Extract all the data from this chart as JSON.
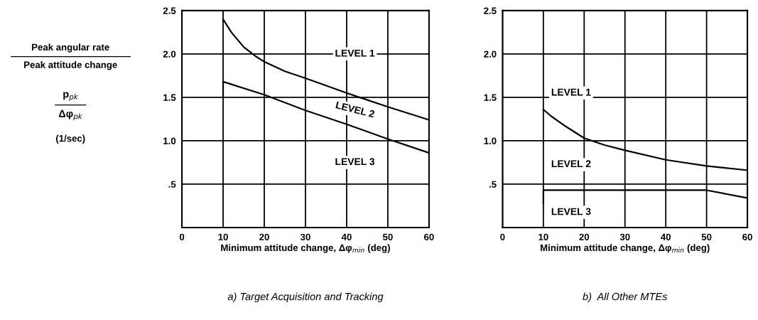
{
  "chart_data": [
    {
      "type": "line",
      "title": "a) Target Acquisition and Tracking",
      "xlabel": "Minimum attitude change, Δφ$_{min}$ (deg)",
      "ylabel": "Peak angular rate\nPeak attitude change\np$_{pk}$\nΔφ$_{pk}$\n(1/sec)",
      "xlim": [
        0,
        60
      ],
      "ylim": [
        0,
        2.5
      ],
      "xticks": [
        0,
        10,
        20,
        30,
        40,
        50,
        60
      ],
      "yticks": [
        {
          "value": 0.5,
          "label": ".5"
        },
        {
          "value": 1.0,
          "label": "1.0"
        },
        {
          "value": 1.5,
          "label": "1.5"
        },
        {
          "value": 2.0,
          "label": "2.0"
        },
        {
          "value": 2.5,
          "label": "2.5"
        }
      ],
      "grid": true,
      "marker": "none",
      "line_style": "solid",
      "series": [
        {
          "color": "#000000",
          "x": [
            10,
            12,
            15,
            18,
            20,
            25,
            30,
            40,
            50,
            60
          ],
          "values": [
            2.4,
            2.25,
            2.08,
            1.97,
            1.91,
            1.8,
            1.72,
            1.55,
            1.39,
            1.24
          ]
        },
        {
          "color": "#000000",
          "x": [
            10,
            10,
            20,
            30,
            40,
            50,
            60
          ],
          "values": [
            1.51,
            1.68,
            1.53,
            1.35,
            1.19,
            1.02,
            0.86
          ]
        }
      ],
      "annotations": [
        "LEVEL 1",
        "LEVEL 2",
        "LEVEL 3"
      ]
    },
    {
      "type": "line",
      "title": "b)  All Other MTEs",
      "xlabel": "Minimum attitude change, Δφ$_{min}$ (deg)",
      "xlim": [
        0,
        60
      ],
      "ylim": [
        0,
        2.5
      ],
      "xticks": [
        0,
        10,
        20,
        30,
        40,
        50,
        60
      ],
      "yticks": [
        {
          "value": 0.5,
          "label": ".5"
        },
        {
          "value": 1.0,
          "label": "1.0"
        },
        {
          "value": 1.5,
          "label": "1.5"
        },
        {
          "value": 2.0,
          "label": "2.0"
        },
        {
          "value": 2.5,
          "label": "2.5"
        }
      ],
      "grid": true,
      "marker": "none",
      "line_style": "solid",
      "series": [
        {
          "color": "#000000",
          "x": [
            10,
            12,
            15,
            20,
            25,
            30,
            40,
            50,
            60
          ],
          "values": [
            1.36,
            1.28,
            1.18,
            1.03,
            0.95,
            0.89,
            0.78,
            0.71,
            0.66
          ]
        },
        {
          "color": "#000000",
          "x": [
            10,
            10,
            20,
            30,
            40,
            50,
            60
          ],
          "values": [
            0.28,
            0.43,
            0.43,
            0.43,
            0.43,
            0.43,
            0.34
          ]
        }
      ],
      "annotations": [
        "LEVEL 1",
        "LEVEL 2",
        "LEVEL 3"
      ]
    }
  ]
}
